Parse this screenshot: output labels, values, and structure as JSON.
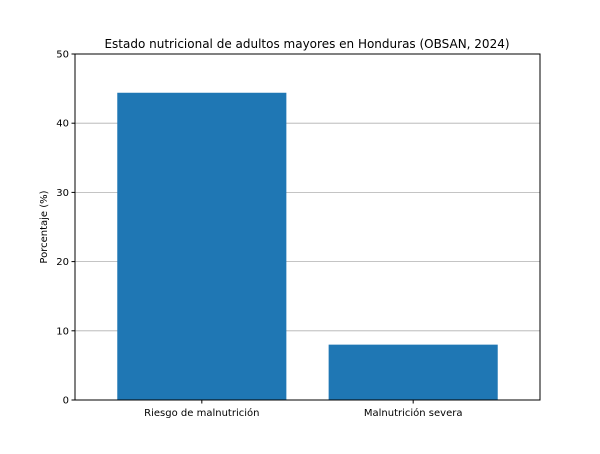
{
  "chart_data": {
    "type": "bar",
    "title": "Estado nutricional de adultos mayores en Honduras (OBSAN, 2024)",
    "xlabel": "",
    "ylabel": "Porcentaje (%)",
    "categories": [
      "Riesgo de malnutrición",
      "Malnutrición severa"
    ],
    "values": [
      44.4,
      8.0
    ],
    "ylim": [
      0,
      50
    ],
    "yticks": [
      0,
      10,
      20,
      30,
      40,
      50
    ],
    "grid": "y",
    "bar_color": "#1f77b4",
    "grid_color": "#b0b0b0"
  }
}
